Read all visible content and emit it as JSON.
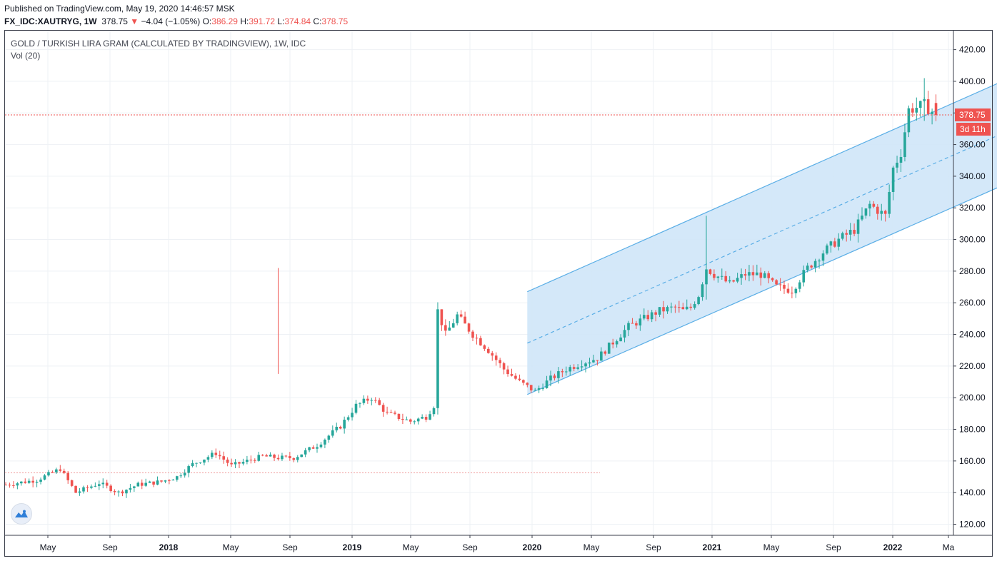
{
  "header": {
    "published": "Published on TradingView.com, May 19, 2020 14:46:57 MSK",
    "symbol": "FX_IDC:XAUTRYG, 1W",
    "last": "378.75",
    "change_arrow": "▼",
    "change": "−4.04 (−1.05%)",
    "o_label": "O:",
    "o_value": "386.29",
    "h_label": "H:",
    "h_value": "391.72",
    "l_label": "L:",
    "l_value": "374.84",
    "c_label": "C:",
    "c_value": "378.75"
  },
  "legend": {
    "title": "GOLD / TURKISH LIRA GRAM (CALCULATED BY TRADINGVIEW), 1W, IDC",
    "indicator": "Vol (20)"
  },
  "chart_data": {
    "type": "candlestick",
    "x_axis_labels": [
      "May",
      "Sep",
      "2018",
      "May",
      "Sep",
      "2019",
      "May",
      "Sep",
      "2020",
      "May",
      "Sep",
      "2021",
      "May",
      "Sep",
      "2022",
      "Ma"
    ],
    "bold_x_labels": [
      "2018",
      "2019",
      "2020",
      "2021",
      "2022"
    ],
    "y_axis_labels": [
      "420.00",
      "400.00",
      "380.00",
      "360.00",
      "340.00",
      "320.00",
      "300.00",
      "280.00",
      "260.00",
      "240.00",
      "220.00",
      "200.00",
      "180.00",
      "160.00",
      "140.00",
      "120.00"
    ],
    "ylim": [
      113,
      432
    ],
    "grid": true,
    "last_price_label": "378.75",
    "countdown_label": "3d 11h",
    "colors": {
      "up": "#26a69a",
      "down": "#ef5350",
      "channel": "#5aaee6",
      "channel_fill": "#cfe6f8",
      "grid": "#eef1f5"
    },
    "price_path": [
      [
        0,
        145
      ],
      [
        8,
        148
      ],
      [
        14,
        155
      ],
      [
        18,
        140
      ],
      [
        24,
        146
      ],
      [
        29,
        140
      ],
      [
        34,
        145
      ],
      [
        40,
        147
      ],
      [
        44,
        150
      ],
      [
        48,
        158
      ],
      [
        54,
        165
      ],
      [
        58,
        157
      ],
      [
        62,
        160
      ],
      [
        66,
        163
      ],
      [
        70,
        162
      ],
      [
        74,
        162
      ],
      [
        80,
        170
      ],
      [
        86,
        182
      ],
      [
        90,
        195
      ],
      [
        94,
        200
      ],
      [
        98,
        190
      ],
      [
        104,
        185
      ],
      [
        108,
        188
      ],
      [
        110,
        195
      ],
      [
        111,
        255
      ],
      [
        113,
        240
      ],
      [
        116,
        252
      ],
      [
        120,
        240
      ],
      [
        124,
        230
      ],
      [
        128,
        218
      ],
      [
        132,
        210
      ],
      [
        134,
        207
      ],
      [
        136,
        204
      ],
      [
        140,
        212
      ],
      [
        144,
        218
      ],
      [
        148,
        222
      ],
      [
        152,
        225
      ],
      [
        156,
        235
      ],
      [
        160,
        245
      ],
      [
        164,
        250
      ],
      [
        168,
        255
      ],
      [
        172,
        257
      ],
      [
        174,
        255
      ],
      [
        176,
        257
      ],
      [
        178,
        265
      ],
      [
        180,
        282
      ],
      [
        182,
        278
      ],
      [
        186,
        272
      ],
      [
        190,
        278
      ],
      [
        194,
        278
      ],
      [
        198,
        270
      ],
      [
        202,
        268
      ],
      [
        206,
        282
      ],
      [
        210,
        292
      ],
      [
        214,
        300
      ],
      [
        218,
        306
      ],
      [
        222,
        322
      ],
      [
        226,
        315
      ],
      [
        228,
        345
      ],
      [
        230,
        355
      ],
      [
        232,
        382
      ],
      [
        236,
        385
      ],
      [
        239,
        379
      ]
    ],
    "channel": {
      "start_week": 134,
      "end_week": 268,
      "lower": [
        202,
        347
      ],
      "upper": [
        267,
        413
      ]
    },
    "baseline_price": 152.5
  }
}
